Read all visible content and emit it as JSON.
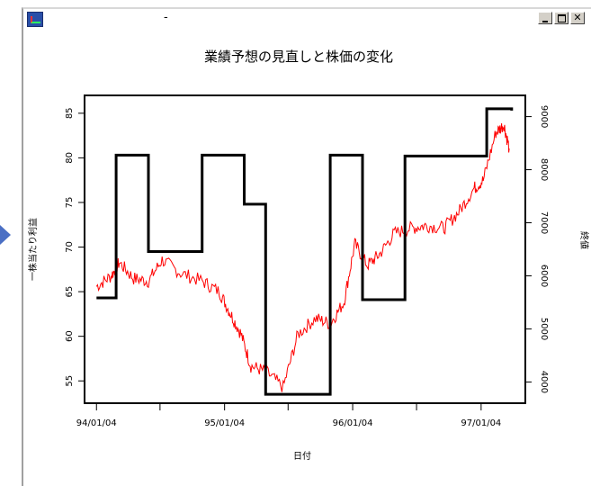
{
  "window": {
    "title": "-",
    "app_icon": "chart-app-icon",
    "controls": [
      "minimize-icon",
      "maximize-icon",
      "close-icon"
    ]
  },
  "chart_data": {
    "type": "line",
    "title": "業績予想の見直しと株価の変化",
    "xlabel": "日付",
    "ylabel_left": "一株当たり利益",
    "ylabel_right": "終値",
    "x_ticks": [
      "94/01/04",
      "95/01/04",
      "96/01/04",
      "97/01/04"
    ],
    "y_left": {
      "ticks": [
        55,
        60,
        65,
        70,
        75,
        80,
        85
      ],
      "range": [
        52.5,
        87
      ]
    },
    "y_right": {
      "ticks": [
        4000,
        5000,
        6000,
        7000,
        8000,
        9000
      ],
      "range": [
        3600,
        9400
      ]
    },
    "grid": false,
    "series": [
      {
        "color": "#000000",
        "axis": "left",
        "style": "step",
        "points": [
          [
            "1994-01-04",
            64.3
          ],
          [
            "1994-03-01",
            80.3
          ],
          [
            "1994-06-01",
            69.5
          ],
          [
            "1994-11-01",
            80.3
          ],
          [
            "1995-03-01",
            74.8
          ],
          [
            "1995-05-01",
            53.5
          ],
          [
            "1995-11-01",
            80.3
          ],
          [
            "1996-02-01",
            64.1
          ],
          [
            "1996-06-01",
            80.2
          ],
          [
            "1997-01-20",
            85.5
          ],
          [
            "1997-04-01",
            85.3
          ]
        ]
      },
      {
        "color": "#ff0000",
        "axis": "right",
        "style": "line",
        "points": [
          [
            "1994-01-04",
            5800
          ],
          [
            "1994-02-15",
            6000
          ],
          [
            "1994-03-10",
            6250
          ],
          [
            "1994-04-20",
            5950
          ],
          [
            "1994-06-01",
            5900
          ],
          [
            "1994-07-10",
            6300
          ],
          [
            "1994-09-01",
            6050
          ],
          [
            "1994-11-01",
            5900
          ],
          [
            "1994-12-20",
            5700
          ],
          [
            "1995-01-20",
            5300
          ],
          [
            "1995-02-20",
            4900
          ],
          [
            "1995-03-20",
            4300
          ],
          [
            "1995-05-01",
            4200
          ],
          [
            "1995-06-20",
            3900
          ],
          [
            "1995-08-01",
            4900
          ],
          [
            "1995-09-20",
            5200
          ],
          [
            "1995-11-01",
            5100
          ],
          [
            "1995-12-10",
            5500
          ],
          [
            "1996-01-10",
            6600
          ],
          [
            "1996-02-15",
            6200
          ],
          [
            "1996-03-20",
            6400
          ],
          [
            "1996-05-01",
            6800
          ],
          [
            "1996-06-20",
            6900
          ],
          [
            "1996-08-01",
            6950
          ],
          [
            "1996-09-20",
            6900
          ],
          [
            "1996-11-01",
            7200
          ],
          [
            "1996-12-15",
            7650
          ],
          [
            "1997-01-10",
            7800
          ],
          [
            "1997-02-15",
            8700
          ],
          [
            "1997-03-10",
            8850
          ],
          [
            "1997-03-25",
            8400
          ]
        ]
      }
    ]
  }
}
